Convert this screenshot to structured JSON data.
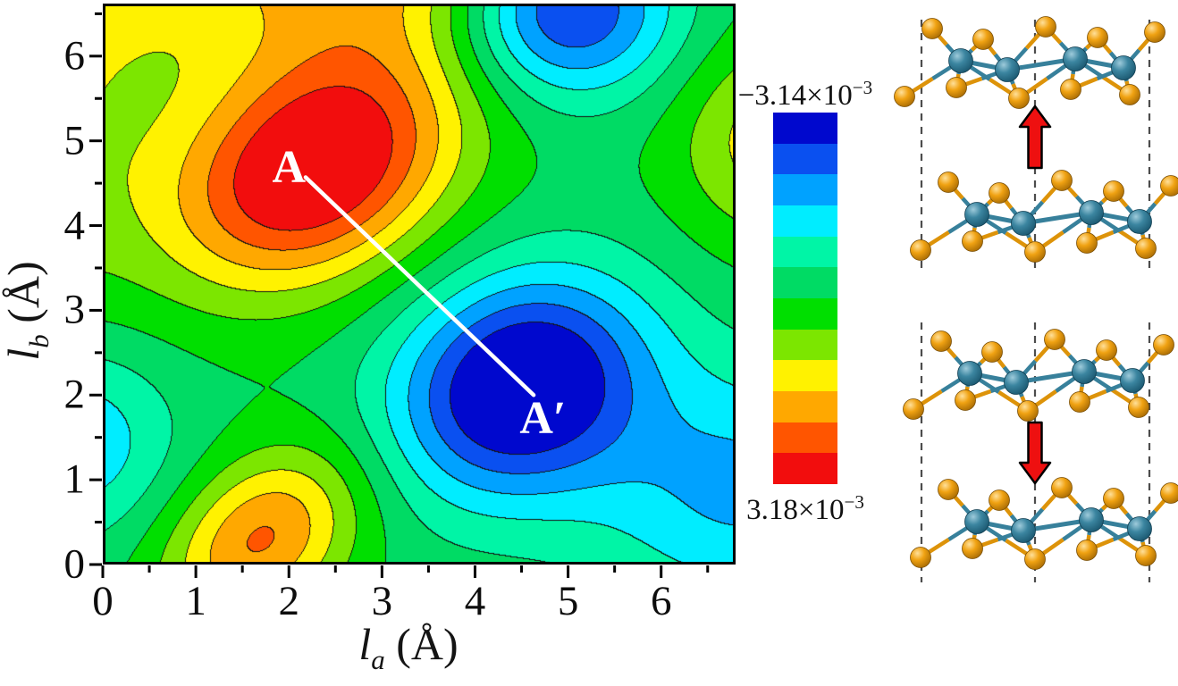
{
  "chart_data": {
    "type": "contour",
    "title": "",
    "xlabel": "l_a (Å)",
    "ylabel": "l_b (Å)",
    "xlabel_parts": {
      "symbol": "l",
      "subscript": "a",
      "unit": "(Å)"
    },
    "ylabel_parts": {
      "symbol": "l",
      "subscript": "b",
      "unit": "(Å)"
    },
    "xlim": [
      0,
      6.8
    ],
    "ylim": [
      0,
      6.62
    ],
    "x_ticks": [
      "0",
      "1",
      "2",
      "3",
      "4",
      "5",
      "6"
    ],
    "y_ticks": [
      "0",
      "1",
      "2",
      "3",
      "4",
      "5",
      "6"
    ],
    "minor_tick_step": 0.5,
    "grid": false,
    "n_levels": 12,
    "z_range": [
      -0.00314,
      0.00318
    ],
    "palette_low_to_high": [
      "#0008CE",
      "#0A50F0",
      "#00A2FF",
      "#00EDFF",
      "#00F5A6",
      "#00DB64",
      "#00DF00",
      "#7CE600",
      "#FFF200",
      "#FFA800",
      "#FF5500",
      "#F20D0D"
    ],
    "contour_line_color": "#141414",
    "field_model": {
      "units": "1e-3",
      "baseline": -0.1,
      "gaussians": [
        {
          "amp": 3.6,
          "cx": 2.25,
          "cy": 4.65,
          "sx": 1.15,
          "sy": 0.85,
          "rot": 35
        },
        {
          "amp": -3.5,
          "cx": 4.5,
          "cy": 2.1,
          "sx": 1.0,
          "sy": 0.85,
          "rot": 40
        },
        {
          "amp": 2.3,
          "cx": 1.7,
          "cy": 0.3,
          "sx": 0.85,
          "sy": 0.6,
          "rot": 45
        },
        {
          "amp": -3.3,
          "cx": 4.95,
          "cy": 6.6,
          "sx": 0.85,
          "sy": 0.75,
          "rot": 0
        },
        {
          "amp": -1.35,
          "cx": -0.3,
          "cy": 1.45,
          "sx": 0.75,
          "sy": 0.8,
          "rot": 0
        },
        {
          "amp": -1.6,
          "cx": 6.9,
          "cy": 0.9,
          "sx": 1.15,
          "sy": 1.0,
          "rot": 0
        },
        {
          "amp": 1.5,
          "cx": 7.25,
          "cy": 5.0,
          "sx": 0.75,
          "sy": 0.85,
          "rot": 0
        },
        {
          "amp": 2.1,
          "cx": 3.0,
          "cy": 7.3,
          "sx": 1.7,
          "sy": 1.1,
          "rot": 0
        },
        {
          "amp": 0.9,
          "cx": -0.6,
          "cy": 7.0,
          "sx": 1.3,
          "sy": 1.0,
          "rot": 0
        },
        {
          "amp": 1.0,
          "cx": -0.7,
          "cy": 4.9,
          "sx": 0.9,
          "sy": 1.3,
          "rot": 0
        }
      ]
    },
    "extrema": {
      "maximum": {
        "label": "A",
        "value_text": "3.18×10⁻³",
        "x": 2.25,
        "y": 4.65
      },
      "minimum": {
        "label": "A′",
        "value_text": "−3.14×10⁻³",
        "x": 4.5,
        "y": 2.1
      }
    },
    "annotations": {
      "point_a": {
        "label": "A",
        "x": 2.0,
        "y": 4.68
      },
      "point_a_prime": {
        "label": "A′",
        "x": 4.73,
        "y": 1.72
      },
      "line": {
        "x1": 2.18,
        "y1": 4.57,
        "x2": 4.63,
        "y2": 2.0,
        "color": "#ffffff"
      }
    },
    "colorbar": {
      "orientation": "vertical",
      "top_value_label": {
        "base": "−3.14×10",
        "exp": "−3",
        "text": "−3.14×10⁻³"
      },
      "bottom_value_label": {
        "base": "3.18×10",
        "exp": "−3",
        "text": "3.18×10⁻³"
      }
    }
  },
  "structures": {
    "panels": [
      {
        "id": "top",
        "arrow_direction": "up"
      },
      {
        "id": "bottom",
        "arrow_direction": "down"
      }
    ],
    "metal_atom_color": "#2e7b99",
    "chalcogen_atom_color": "#e8960e",
    "metal_bond_color": "#37809b",
    "chalcogen_bond_color": "#dd9309",
    "arrow_color": "#ee1010",
    "arrow_outline_color": "#000000",
    "guide_line_color": "#4d4d4d"
  }
}
